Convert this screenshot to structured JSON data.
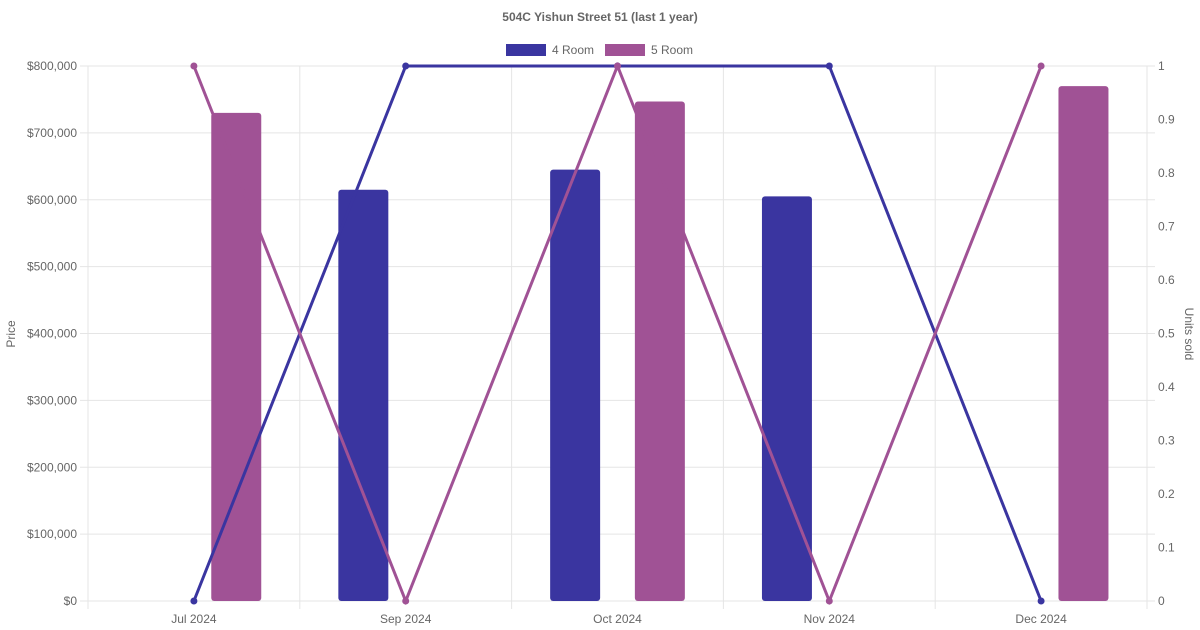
{
  "chart_data": {
    "type": "bar",
    "title": "504C Yishun Street 51 (last 1 year)",
    "categories": [
      "Jul 2024",
      "Sep 2024",
      "Oct 2024",
      "Nov 2024",
      "Dec 2024"
    ],
    "y_left": {
      "label": "Price",
      "range": [
        0,
        800000
      ],
      "ticks": [
        "$0",
        "$100,000",
        "$200,000",
        "$300,000",
        "$400,000",
        "$500,000",
        "$600,000",
        "$700,000",
        "$800,000"
      ]
    },
    "y_right": {
      "label": "Units sold",
      "range": [
        0,
        1
      ],
      "ticks": [
        "0",
        "0.1",
        "0.2",
        "0.3",
        "0.4",
        "0.5",
        "0.6",
        "0.7",
        "0.8",
        "0.9",
        "1"
      ]
    },
    "legend_position": "top",
    "grid": true,
    "series": [
      {
        "name": "4 Room",
        "color": "#3a35a0",
        "price": [
          null,
          615000,
          645000,
          605000,
          null
        ],
        "units_sold": [
          0,
          1,
          1,
          1,
          0
        ]
      },
      {
        "name": "5 Room",
        "color": "#a05295",
        "price": [
          730000,
          null,
          747000,
          null,
          770000
        ],
        "units_sold": [
          1,
          0,
          1,
          0,
          1
        ]
      }
    ]
  }
}
